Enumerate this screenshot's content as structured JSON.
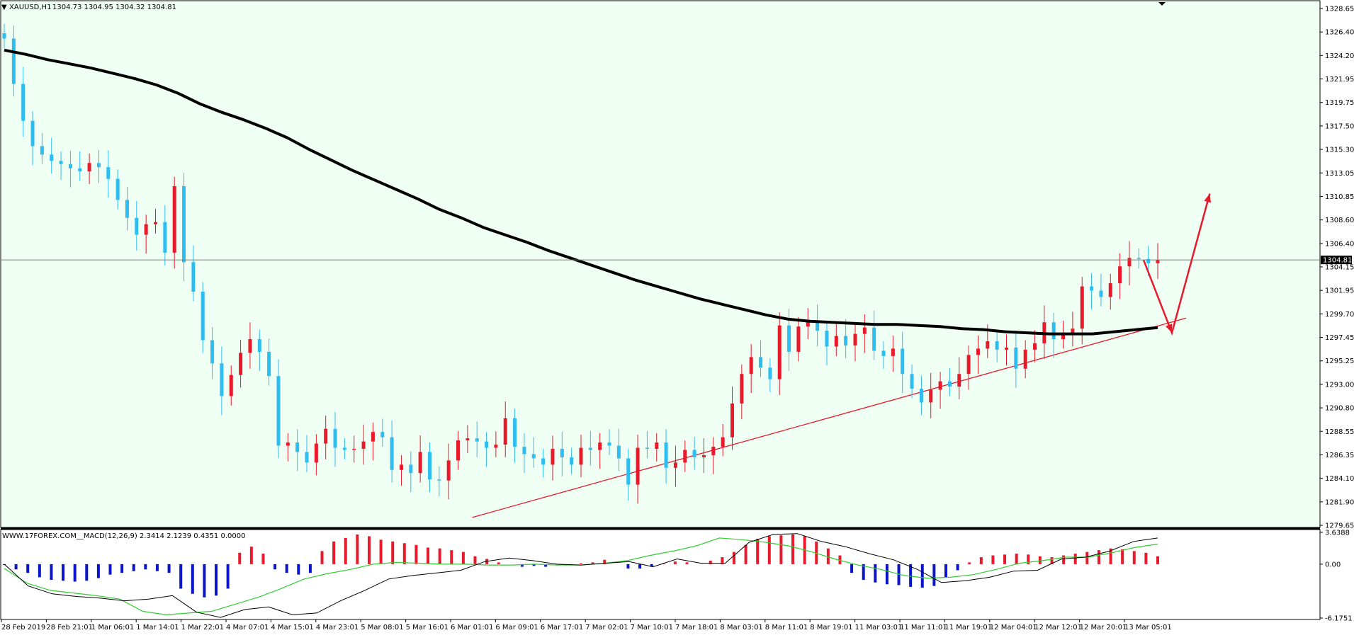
{
  "window": {
    "symbol_caret": "▼",
    "symbol": "XAUUSD,H1",
    "ohlc": "1304.73 1304.95 1304.32 1304.81"
  },
  "colors": {
    "background": "#f0fff4",
    "bull": "#e8192a",
    "bear": "#2dbdf0",
    "ma": "#000000",
    "trendline": "#e8192a",
    "macd_pos": "#e8192a",
    "macd_neg": "#0a14c8",
    "signal": "#33cc33"
  },
  "main": {
    "price_labels": [
      "1328.65",
      "1326.40",
      "1324.20",
      "1321.95",
      "1319.75",
      "1317.50",
      "1315.30",
      "1313.05",
      "1310.85",
      "1308.60",
      "1306.40",
      "1304.15",
      "1301.95",
      "1299.70",
      "1297.45",
      "1295.25",
      "1293.00",
      "1290.80",
      "1288.55",
      "1286.35",
      "1284.10",
      "1281.90",
      "1279.65"
    ],
    "current_price": "1304.81"
  },
  "indicator": {
    "label": "WWW.17FOREX.COM__MACD(12,26,9) 2.3414 2.1239 0.4351 0.0000",
    "scale_labels": [
      "3.6388",
      "0.00",
      "-6.1751"
    ]
  },
  "time_labels": [
    "28 Feb 2019",
    "28 Feb 21:01",
    "1 Mar 06:01",
    "1 Mar 14:01",
    "1 Mar 22:01",
    "4 Mar 07:01",
    "4 Mar 15:01",
    "4 Mar 23:01",
    "5 Mar 08:01",
    "5 Mar 16:01",
    "6 Mar 01:01",
    "6 Mar 09:01",
    "6 Mar 17:01",
    "7 Mar 02:01",
    "7 Mar 10:01",
    "7 Mar 18:01",
    "8 Mar 03:01",
    "8 Mar 11:01",
    "8 Mar 19:01",
    "11 Mar 03:01",
    "11 Mar 11:01",
    "11 Mar 19:01",
    "12 Mar 04:01",
    "12 Mar 12:01",
    "12 Mar 20:01",
    "13 Mar 05:01"
  ],
  "chart_data": [
    {
      "type": "candlestick",
      "title": "XAUUSD,H1",
      "ylim": [
        1279.65,
        1328.65
      ],
      "series": [
        {
          "name": "close",
          "values": [
            1325.8,
            1321.5,
            1318.0,
            1315.6,
            1314.8,
            1314.2,
            1313.9,
            1313.5,
            1313.2,
            1314.0,
            1313.6,
            1312.5,
            1310.5,
            1308.8,
            1307.2,
            1308.2,
            1308.4,
            1305.5,
            1311.8,
            1304.6,
            1301.8,
            1297.2,
            1295.0,
            1291.9,
            1293.9,
            1296.0,
            1297.3,
            1296.1,
            1293.8,
            1287.2,
            1287.5,
            1286.6,
            1285.6,
            1287.4,
            1288.8,
            1287.0,
            1286.8,
            1286.9,
            1287.6,
            1288.5,
            1288.0,
            1284.9,
            1285.4,
            1284.6,
            1286.6,
            1284.0,
            1283.9,
            1285.8,
            1287.7,
            1287.9,
            1287.6,
            1287.0,
            1287.3,
            1289.8,
            1287.1,
            1286.4,
            1286.0,
            1285.4,
            1286.9,
            1286.1,
            1285.4,
            1287.0,
            1286.8,
            1287.5,
            1287.2,
            1286.0,
            1283.5,
            1287.0,
            1286.9,
            1287.5,
            1285.1,
            1285.6,
            1286.8,
            1286.1,
            1286.3,
            1287.1,
            1288.0,
            1291.2,
            1294.0,
            1295.6,
            1294.6,
            1293.5,
            1298.6,
            1296.1,
            1298.5,
            1299.0,
            1298.1,
            1296.6,
            1297.6,
            1296.7,
            1297.8,
            1298.4,
            1296.2,
            1295.7,
            1296.4,
            1294.0,
            1292.6,
            1291.3,
            1292.5,
            1293.3,
            1292.8,
            1294.0,
            1295.8,
            1296.4,
            1297.1,
            1296.3,
            1296.5,
            1294.5,
            1296.3,
            1296.9,
            1298.9,
            1297.3,
            1297.8,
            1298.3,
            1302.3,
            1301.9,
            1301.3,
            1302.6,
            1304.2,
            1305.0,
            1304.9,
            1304.5,
            1304.81
          ]
        }
      ],
      "overlays": [
        {
          "name": "moving average",
          "values": [
            1324.7,
            1324.3,
            1323.8,
            1323.4,
            1323.0,
            1322.5,
            1322.0,
            1321.4,
            1320.6,
            1319.6,
            1318.8,
            1318.1,
            1317.3,
            1316.4,
            1315.3,
            1314.3,
            1313.3,
            1312.4,
            1311.5,
            1310.6,
            1309.6,
            1308.8,
            1307.9,
            1307.2,
            1306.5,
            1305.7,
            1305.0,
            1304.3,
            1303.6,
            1302.9,
            1302.3,
            1301.7,
            1301.1,
            1300.6,
            1300.1,
            1299.6,
            1299.2,
            1299.0,
            1298.9,
            1298.8,
            1298.7,
            1298.7,
            1298.6,
            1298.5,
            1298.3,
            1298.2,
            1298.0,
            1297.9,
            1297.8,
            1297.8,
            1297.8,
            1298.0,
            1298.2,
            1298.4
          ]
        },
        {
          "name": "trendline",
          "x": [
            49.5,
            125
          ],
          "values": [
            1280.4,
            1299.3
          ]
        }
      ],
      "annotations": {
        "arrow_path": [
          [
            120.5,
            1304.81
          ],
          [
            123.5,
            1297.9
          ],
          [
            127.5,
            1311.1
          ]
        ]
      }
    },
    {
      "type": "bar",
      "title": "WWW.17FOREX.COM__MACD(12,26,9) 2.3414 2.1239 0.4351 0.0000",
      "ylim": [
        -6.1751,
        3.6388
      ],
      "series": [
        {
          "name": "histogram",
          "values": [
            -0.1,
            -0.6,
            -1.0,
            -1.5,
            -1.8,
            -1.9,
            -2.0,
            -1.9,
            -1.6,
            -1.2,
            -1.0,
            -0.8,
            -0.6,
            -0.8,
            -1.0,
            -2.8,
            -3.4,
            -3.8,
            -3.6,
            -2.8,
            1.3,
            2.0,
            1.2,
            -0.6,
            -1.0,
            -1.2,
            -1.0,
            1.5,
            2.6,
            3.0,
            3.4,
            3.2,
            2.8,
            2.6,
            2.4,
            2.2,
            1.9,
            1.8,
            1.6,
            1.4,
            0.9,
            0.6,
            0.2,
            0.0,
            -0.3,
            -0.2,
            -0.3,
            -0.1,
            0.0,
            0.1,
            0.2,
            0.5,
            0.0,
            -0.5,
            -0.5,
            -0.3,
            0.1,
            0.3,
            0.2,
            0.0,
            0.4,
            0.8,
            1.4,
            2.2,
            2.9,
            3.2,
            3.3,
            3.4,
            3.2,
            2.6,
            1.8,
            1.0,
            -1.0,
            -1.8,
            -2.1,
            -2.3,
            -2.4,
            -2.6,
            -2.7,
            -2.5,
            -1.5,
            -0.7,
            0.2,
            0.8,
            1.0,
            1.1,
            1.2,
            1.1,
            0.9,
            0.8,
            1.0,
            1.2,
            1.4,
            1.6,
            1.8,
            1.7,
            1.5,
            1.3,
            0.9
          ]
        },
        {
          "name": "macd",
          "values": [
            0.0,
            -2.5,
            -3.4,
            -3.7,
            -3.9,
            -4.2,
            -4.0,
            -3.6,
            -5.5,
            -6.1,
            -5.2,
            -4.9,
            -5.8,
            -5.6,
            -4.2,
            -3.0,
            -1.7,
            -1.3,
            -1.0,
            -0.7,
            0.3,
            0.7,
            0.4,
            0.0,
            -0.1,
            0.1,
            0.3,
            -0.3,
            0.6,
            0.1,
            0.1,
            2.5,
            3.4,
            3.5,
            2.6,
            2.0,
            1.2,
            0.5,
            -0.6,
            -2.1,
            -1.9,
            -1.5,
            -0.8,
            -0.7,
            0.6,
            0.8,
            1.5,
            2.6,
            3.0
          ]
        },
        {
          "name": "signal",
          "values": [
            -0.5,
            -2.2,
            -3.0,
            -3.3,
            -3.6,
            -4.0,
            -5.4,
            -5.8,
            -5.6,
            -5.4,
            -4.6,
            -3.8,
            -2.8,
            -1.7,
            -1.1,
            -0.6,
            0.0,
            0.2,
            0.1,
            0.0,
            0.0,
            -0.1,
            -0.1,
            0.0,
            -0.1,
            -0.1,
            0.1,
            0.4,
            1.0,
            1.5,
            2.1,
            3.0,
            2.8,
            2.5,
            2.1,
            1.4,
            0.6,
            -0.1,
            -0.6,
            -1.3,
            -1.6,
            -1.5,
            -1.2,
            -0.6,
            0.1,
            0.4,
            0.8,
            0.8,
            1.3,
            1.9,
            2.3
          ]
        }
      ]
    }
  ]
}
